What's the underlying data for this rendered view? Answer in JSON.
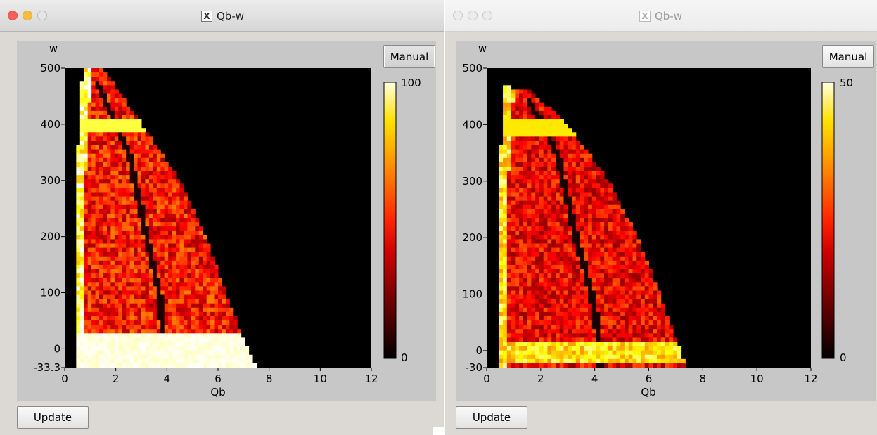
{
  "windows": [
    {
      "title": "Qb-w",
      "active": true,
      "ylabel": "w",
      "xlabel": "Qb",
      "x_ticks": [
        "0",
        "2",
        "4",
        "6",
        "8",
        "10",
        "12"
      ],
      "y_ticks": [
        "500",
        "400",
        "300",
        "200",
        "100",
        "0",
        "-33.3"
      ],
      "colorbar": {
        "max_label": "100",
        "min_label": "0"
      },
      "manual_label": "Manual",
      "update_label": "Update"
    },
    {
      "title": "Qb-w",
      "active": false,
      "ylabel": "w",
      "xlabel": "Qb",
      "x_ticks": [
        "0",
        "2",
        "4",
        "6",
        "8",
        "10",
        "12"
      ],
      "y_ticks": [
        "500",
        "400",
        "300",
        "200",
        "100",
        "0",
        "-30"
      ],
      "colorbar": {
        "max_label": "50",
        "min_label": "0"
      },
      "manual_label": "Manual",
      "update_label": "Update"
    }
  ],
  "chart_data": [
    {
      "type": "heatmap",
      "title": "Qb-w",
      "xlabel": "Qb",
      "ylabel": "w",
      "xlim": [
        0,
        12
      ],
      "ylim": [
        -33.3,
        500
      ],
      "color_scale": {
        "min": 0,
        "max": 100,
        "colormap": "hot"
      },
      "region": {
        "outer_edge_w_vs_qb": [
          [
            0.5,
            500
          ],
          [
            1.5,
            500
          ],
          [
            3.0,
            400
          ],
          [
            4.5,
            300
          ],
          [
            5.5,
            200
          ],
          [
            6.3,
            100
          ],
          [
            6.9,
            30
          ],
          [
            7.5,
            -33.3
          ]
        ],
        "dark_ridge_w_vs_qb": [
          [
            1.2,
            480
          ],
          [
            2.5,
            350
          ],
          [
            3.2,
            200
          ],
          [
            3.7,
            100
          ],
          [
            3.9,
            0
          ]
        ],
        "bright_band_w": [
          390,
          400
        ],
        "saturated_band_w": [
          -33.3,
          30
        ]
      }
    },
    {
      "type": "heatmap",
      "title": "Qb-w",
      "xlabel": "Qb",
      "ylabel": "w",
      "xlim": [
        0,
        12
      ],
      "ylim": [
        -30,
        500
      ],
      "color_scale": {
        "min": 0,
        "max": 50,
        "colormap": "hot"
      },
      "region": {
        "outer_edge_w_vs_qb": [
          [
            0.5,
            470
          ],
          [
            1.6,
            460
          ],
          [
            3.0,
            400
          ],
          [
            4.5,
            300
          ],
          [
            5.6,
            200
          ],
          [
            6.4,
            100
          ],
          [
            7.0,
            20
          ],
          [
            7.4,
            -30
          ]
        ],
        "dark_ridge_w_vs_qb": [
          [
            1.5,
            450
          ],
          [
            2.6,
            350
          ],
          [
            3.3,
            200
          ],
          [
            3.9,
            100
          ],
          [
            4.2,
            0
          ]
        ],
        "bright_band_w": [
          390,
          400
        ],
        "bright_strip_w": [
          -20,
          15
        ]
      }
    }
  ]
}
